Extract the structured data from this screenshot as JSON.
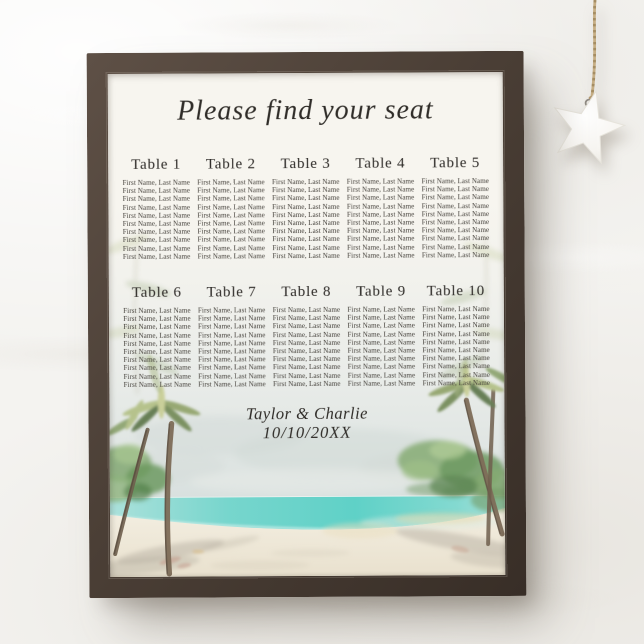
{
  "poster": {
    "title": "Please find your seat",
    "couple": "Taylor & Charlie",
    "date": "10/10/20XX",
    "tables": [
      {
        "label": "Table 1",
        "guests": [
          "First Name, Last Name",
          "First Name, Last Name",
          "First Name, Last Name",
          "First Name, Last Name",
          "First Name, Last Name",
          "First Name, Last Name",
          "First Name, Last Name",
          "First Name, Last Name",
          "First Name, Last Name",
          "First Name, Last Name"
        ]
      },
      {
        "label": "Table 2",
        "guests": [
          "First Name, Last Name",
          "First Name, Last Name",
          "First Name, Last Name",
          "First Name, Last Name",
          "First Name, Last Name",
          "First Name, Last Name",
          "First Name, Last Name",
          "First Name, Last Name",
          "First Name, Last Name",
          "First Name, Last Name"
        ]
      },
      {
        "label": "Table 3",
        "guests": [
          "First Name, Last Name",
          "First Name, Last Name",
          "First Name, Last Name",
          "First Name, Last Name",
          "First Name, Last Name",
          "First Name, Last Name",
          "First Name, Last Name",
          "First Name, Last Name",
          "First Name, Last Name",
          "First Name, Last Name"
        ]
      },
      {
        "label": "Table 4",
        "guests": [
          "First Name, Last Name",
          "First Name, Last Name",
          "First Name, Last Name",
          "First Name, Last Name",
          "First Name, Last Name",
          "First Name, Last Name",
          "First Name, Last Name",
          "First Name, Last Name",
          "First Name, Last Name",
          "First Name, Last Name"
        ]
      },
      {
        "label": "Table 5",
        "guests": [
          "First Name, Last Name",
          "First Name, Last Name",
          "First Name, Last Name",
          "First Name, Last Name",
          "First Name, Last Name",
          "First Name, Last Name",
          "First Name, Last Name",
          "First Name, Last Name",
          "First Name, Last Name",
          "First Name, Last Name"
        ]
      },
      {
        "label": "Table 6",
        "guests": [
          "First Name, Last Name",
          "First Name, Last Name",
          "First Name, Last Name",
          "First Name, Last Name",
          "First Name, Last Name",
          "First Name, Last Name",
          "First Name, Last Name",
          "First Name, Last Name",
          "First Name, Last Name",
          "First Name, Last Name"
        ]
      },
      {
        "label": "Table 7",
        "guests": [
          "First Name, Last Name",
          "First Name, Last Name",
          "First Name, Last Name",
          "First Name, Last Name",
          "First Name, Last Name",
          "First Name, Last Name",
          "First Name, Last Name",
          "First Name, Last Name",
          "First Name, Last Name",
          "First Name, Last Name"
        ]
      },
      {
        "label": "Table 8",
        "guests": [
          "First Name, Last Name",
          "First Name, Last Name",
          "First Name, Last Name",
          "First Name, Last Name",
          "First Name, Last Name",
          "First Name, Last Name",
          "First Name, Last Name",
          "First Name, Last Name",
          "First Name, Last Name",
          "First Name, Last Name"
        ]
      },
      {
        "label": "Table 9",
        "guests": [
          "First Name, Last Name",
          "First Name, Last Name",
          "First Name, Last Name",
          "First Name, Last Name",
          "First Name, Last Name",
          "First Name, Last Name",
          "First Name, Last Name",
          "First Name, Last Name",
          "First Name, Last Name",
          "First Name, Last Name"
        ]
      },
      {
        "label": "Table 10",
        "guests": [
          "First Name, Last Name",
          "First Name, Last Name",
          "First Name, Last Name",
          "First Name, Last Name",
          "First Name, Last Name",
          "First Name, Last Name",
          "First Name, Last Name",
          "First Name, Last Name",
          "First Name, Last Name",
          "First Name, Last Name"
        ]
      }
    ]
  },
  "decor": {
    "ornament": "white-star-on-jute-string",
    "artwork": "watercolor-tropical-beach-with-palm-trees"
  },
  "colors": {
    "wall": "#f4f3f0",
    "frame": "#4b3f36",
    "paper": "#f7f5ef",
    "sea": "#5fd0c7",
    "sand": "#efe9dc",
    "palm_green": "#93a877",
    "text": "#2f2c28"
  }
}
